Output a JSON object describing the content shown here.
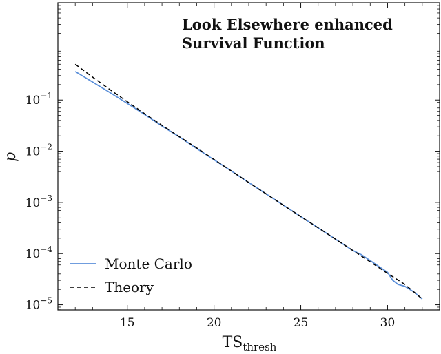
{
  "chart_data": {
    "type": "line",
    "title_lines": [
      "Look Elsewhere enhanced",
      "Survival Function"
    ],
    "xlabel_main": "TS",
    "xlabel_sub": "thresh",
    "ylabel": "p",
    "xlim": [
      11,
      33
    ],
    "ylim_log10": [
      -5.1,
      0.9
    ],
    "yscale": "log",
    "x_ticks": [
      15,
      20,
      25,
      30
    ],
    "x_tick_labels": [
      "15",
      "20",
      "25",
      "30"
    ],
    "y_ticks_log10": [
      -1,
      -2,
      -3,
      -4,
      -5
    ],
    "y_tick_base": "10",
    "y_tick_exponents": [
      "−1",
      "−2",
      "−3",
      "−4",
      "−5"
    ],
    "legend_position": "lower-left",
    "series": [
      {
        "name": "Monte Carlo",
        "color": "#5b8fd9",
        "style": "solid",
        "x": [
          12,
          13,
          14,
          15,
          16,
          17,
          18,
          19,
          20,
          21,
          22,
          23,
          24,
          25,
          26,
          27,
          28,
          28.5,
          29,
          29.5,
          30,
          30.3,
          30.6,
          31,
          31.5,
          32
        ],
        "y": [
          0.36,
          0.225,
          0.14,
          0.086,
          0.052,
          0.031,
          0.019,
          0.0113,
          0.0068,
          0.0041,
          0.00245,
          0.00147,
          0.00088,
          0.00053,
          0.00032,
          0.000192,
          0.000115,
          9.5e-05,
          7.3e-05,
          5.6e-05,
          4.3e-05,
          3e-05,
          2.5e-05,
          2.3e-05,
          1.8e-05,
          1.3e-05
        ]
      },
      {
        "name": "Theory",
        "color": "#000000",
        "style": "dashed",
        "x": [
          12,
          13,
          14,
          15,
          16,
          17,
          18,
          19,
          20,
          21,
          22,
          23,
          24,
          25,
          26,
          27,
          28,
          29,
          30,
          31,
          32
        ],
        "y": [
          0.5,
          0.28,
          0.16,
          0.093,
          0.054,
          0.032,
          0.0192,
          0.0116,
          0.0069,
          0.0041,
          0.00245,
          0.00147,
          0.00088,
          0.00053,
          0.00032,
          0.000192,
          0.000115,
          6.9e-05,
          4.1e-05,
          2.5e-05,
          1.3e-05
        ]
      }
    ]
  }
}
